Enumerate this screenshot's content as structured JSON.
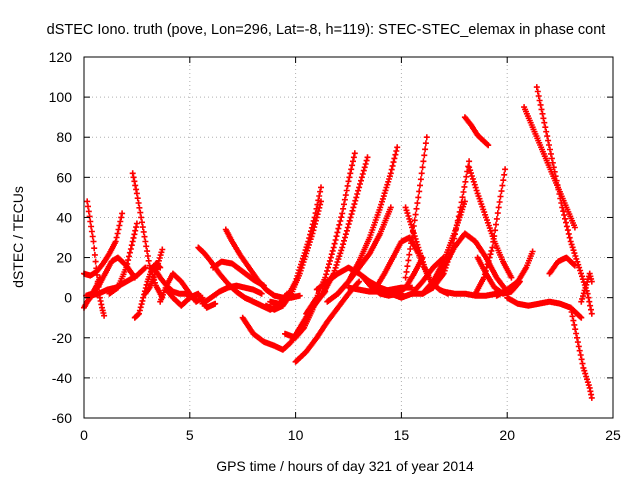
{
  "chart_data": {
    "type": "scatter",
    "title": "dSTEC Iono. truth (pove, Lon=296, Lat=-8, h=119): STEC-STEC_elemax in phase cont",
    "xlabel": "GPS time / hours of day 321 of year 2014",
    "ylabel": "dSTEC  / TECUs",
    "xlim": [
      0,
      25
    ],
    "ylim": [
      -60,
      120
    ],
    "xticks": [
      0,
      5,
      10,
      15,
      20,
      25
    ],
    "yticks": [
      -60,
      -40,
      -20,
      0,
      20,
      40,
      60,
      80,
      100,
      120
    ],
    "grid": true,
    "legend": "none",
    "marker": "plus",
    "color": "#ff0000",
    "series": [
      {
        "x": [
          0.0,
          0.15,
          0.3,
          0.45,
          0.6,
          0.75
        ],
        "y": [
          -5,
          -2,
          0,
          3,
          6,
          10
        ]
      },
      {
        "x": [
          0.15,
          0.3,
          0.45,
          0.55,
          0.65,
          0.75,
          0.85,
          0.95
        ],
        "y": [
          48,
          38,
          28,
          18,
          8,
          0,
          -5,
          -9
        ]
      },
      {
        "x": [
          0.0,
          0.3,
          0.6,
          0.9,
          1.2,
          1.5,
          1.8
        ],
        "y": [
          12,
          11,
          13,
          17,
          22,
          28,
          42
        ]
      },
      {
        "x": [
          0.1,
          0.4,
          0.7,
          1.0,
          1.3,
          1.6,
          2.0,
          2.4
        ],
        "y": [
          1,
          2,
          6,
          12,
          18,
          20,
          16,
          10
        ]
      },
      {
        "x": [
          0.3,
          0.7,
          1.1,
          1.5,
          2.0,
          2.5,
          2.9
        ],
        "y": [
          1,
          2,
          4,
          5,
          8,
          11,
          15
        ]
      },
      {
        "x": [
          1.2,
          1.6,
          2.0,
          2.3,
          2.5
        ],
        "y": [
          2,
          5,
          15,
          28,
          37
        ]
      },
      {
        "x": [
          2.3,
          2.5,
          2.7,
          2.9,
          3.1,
          3.4,
          3.7
        ],
        "y": [
          62,
          52,
          40,
          28,
          16,
          6,
          0
        ]
      },
      {
        "x": [
          2.4,
          2.6,
          2.8,
          3.0,
          3.2,
          3.4,
          3.6
        ],
        "y": [
          -10,
          -8,
          0,
          8,
          14,
          17,
          15
        ]
      },
      {
        "x": [
          2.9,
          3.1,
          3.3,
          3.5,
          3.7
        ],
        "y": [
          2,
          5,
          10,
          17,
          24
        ]
      },
      {
        "x": [
          3.3,
          3.6,
          3.9,
          4.2,
          4.5,
          4.8,
          5.2
        ],
        "y": [
          15,
          10,
          6,
          3,
          2,
          2,
          0
        ]
      },
      {
        "x": [
          3.6,
          3.9,
          4.2,
          4.6,
          5.0,
          5.3,
          5.6
        ],
        "y": [
          -2,
          6,
          12,
          8,
          2,
          -2,
          0
        ]
      },
      {
        "x": [
          3.9,
          4.2,
          4.6,
          5.0,
          5.4,
          5.8,
          6.2
        ],
        "y": [
          4,
          0,
          -4,
          0,
          2,
          -5,
          -3
        ]
      },
      {
        "x": [
          5.4,
          5.7,
          6.0,
          6.4,
          6.8,
          7.2,
          7.6,
          8.0,
          8.4,
          8.8,
          9.2,
          9.6
        ],
        "y": [
          25,
          22,
          18,
          12,
          7,
          3,
          0,
          -2,
          -4,
          -6,
          -4,
          2
        ]
      },
      {
        "x": [
          5.6,
          6.0,
          6.4,
          6.8,
          7.2,
          7.6,
          8.0,
          8.4
        ],
        "y": [
          -3,
          0,
          3,
          5,
          6,
          5,
          4,
          2
        ]
      },
      {
        "x": [
          6.1,
          6.5,
          7.0,
          7.5,
          8.0,
          8.5
        ],
        "y": [
          15,
          18,
          17,
          13,
          9,
          6
        ]
      },
      {
        "x": [
          6.7,
          7.0,
          7.4,
          7.8,
          8.2,
          8.6,
          9.0,
          9.4,
          9.8,
          10.2
        ],
        "y": [
          34,
          28,
          21,
          15,
          9,
          4,
          1,
          0,
          0,
          1
        ]
      },
      {
        "x": [
          7.5,
          8.0,
          8.5,
          9.0,
          9.4,
          9.8,
          10.2,
          10.6,
          11.0,
          11.4
        ],
        "y": [
          -10,
          -18,
          -22,
          -24,
          -26,
          -22,
          -15,
          -8,
          -2,
          3
        ]
      },
      {
        "x": [
          8.6,
          9.0,
          9.4,
          9.8,
          10.2,
          10.5,
          10.8,
          11.0,
          11.2
        ],
        "y": [
          -4,
          -6,
          -4,
          2,
          12,
          22,
          32,
          40,
          48
        ]
      },
      {
        "x": [
          8.8,
          9.2,
          9.6,
          10.0,
          10.3,
          10.6,
          10.9,
          11.2
        ],
        "y": [
          -2,
          -3,
          0,
          8,
          18,
          28,
          40,
          55
        ]
      },
      {
        "x": [
          9.5,
          10.0,
          10.4,
          10.8,
          11.0
        ],
        "y": [
          -18,
          -20,
          -15,
          -6,
          0
        ]
      },
      {
        "x": [
          10.0,
          10.5,
          11.0,
          11.5,
          12.0,
          12.5,
          13.0
        ],
        "y": [
          -32,
          -27,
          -20,
          -12,
          -5,
          2,
          8
        ]
      },
      {
        "x": [
          10.5,
          11.0,
          11.4,
          11.8,
          12.2,
          12.5,
          12.8
        ],
        "y": [
          -8,
          0,
          10,
          25,
          42,
          58,
          72
        ]
      },
      {
        "x": [
          10.8,
          11.3,
          11.8,
          12.2,
          12.6,
          13.0,
          13.4
        ],
        "y": [
          -5,
          2,
          12,
          25,
          40,
          55,
          70
        ]
      },
      {
        "x": [
          11.0,
          11.5,
          12.0,
          12.5,
          13.0,
          13.5,
          14.0,
          14.5,
          15.0
        ],
        "y": [
          4,
          8,
          12,
          15,
          12,
          8,
          5,
          3,
          2
        ]
      },
      {
        "x": [
          11.5,
          12.0,
          12.5,
          13.0,
          13.5,
          14.0,
          14.5
        ],
        "y": [
          -2,
          2,
          8,
          15,
          22,
          32,
          45
        ]
      },
      {
        "x": [
          12.0,
          12.5,
          13.0,
          13.5,
          14.0,
          14.5,
          14.8
        ],
        "y": [
          2,
          8,
          18,
          30,
          45,
          62,
          75
        ]
      },
      {
        "x": [
          12.5,
          13.0,
          13.5,
          14.0,
          14.5,
          15.0,
          15.5
        ],
        "y": [
          5,
          4,
          3,
          3,
          4,
          5,
          5
        ]
      },
      {
        "x": [
          13.2,
          13.6,
          14.0,
          14.4,
          14.8,
          15.2,
          15.6,
          16.0
        ],
        "y": [
          10,
          5,
          2,
          1,
          2,
          5,
          12,
          20
        ]
      },
      {
        "x": [
          13.8,
          14.2,
          14.6,
          15.0,
          15.4,
          15.8,
          16.2
        ],
        "y": [
          5,
          12,
          20,
          28,
          30,
          22,
          12
        ]
      },
      {
        "x": [
          14.5,
          15.0,
          15.5,
          16.0,
          16.5,
          17.0
        ],
        "y": [
          2,
          0,
          2,
          8,
          15,
          20
        ]
      },
      {
        "x": [
          15.2,
          15.5,
          15.8,
          16.1,
          16.4,
          16.8,
          17.2
        ],
        "y": [
          45,
          35,
          25,
          15,
          8,
          4,
          2
        ]
      },
      {
        "x": [
          15.2,
          15.5,
          15.8,
          16.0,
          16.2
        ],
        "y": [
          10,
          30,
          50,
          65,
          80
        ]
      },
      {
        "x": [
          15.5,
          16.0,
          16.5,
          17.0,
          17.4,
          17.8,
          18.2
        ],
        "y": [
          2,
          2,
          5,
          12,
          25,
          45,
          68
        ]
      },
      {
        "x": [
          16.0,
          16.5,
          17.0,
          17.5,
          18.0
        ],
        "y": [
          2,
          8,
          18,
          32,
          48
        ]
      },
      {
        "x": [
          16.5,
          17.0,
          17.5,
          18.0,
          18.5,
          19.0,
          19.5,
          20.0
        ],
        "y": [
          5,
          15,
          25,
          32,
          28,
          20,
          10,
          3
        ]
      },
      {
        "x": [
          17.0,
          17.5,
          18.0,
          18.5,
          19.0,
          19.5,
          20.0
        ],
        "y": [
          3,
          2,
          2,
          1,
          1,
          2,
          3
        ]
      },
      {
        "x": [
          18.0,
          18.3,
          18.6,
          18.9,
          19.1
        ],
        "y": [
          90,
          86,
          81,
          78,
          76
        ]
      },
      {
        "x": [
          18.2,
          18.6,
          19.0,
          19.4,
          19.8,
          20.2
        ],
        "y": [
          65,
          52,
          40,
          28,
          18,
          10
        ]
      },
      {
        "x": [
          18.6,
          19.0,
          19.4,
          19.8,
          20.2,
          20.6
        ],
        "y": [
          20,
          12,
          5,
          2,
          3,
          8
        ]
      },
      {
        "x": [
          18.5,
          18.9,
          19.3,
          19.6,
          19.9
        ],
        "y": [
          2,
          10,
          25,
          45,
          64
        ]
      },
      {
        "x": [
          19.5,
          20.0,
          20.5,
          20.9,
          21.2
        ],
        "y": [
          1,
          4,
          8,
          15,
          23
        ]
      },
      {
        "x": [
          20.0,
          20.5,
          21.0,
          21.5,
          22.0,
          22.5,
          23.0,
          23.5
        ],
        "y": [
          0,
          -3,
          -4,
          -3,
          -2,
          -3,
          -5,
          -10
        ]
      },
      {
        "x": [
          20.8,
          21.2,
          21.6,
          22.0,
          22.4,
          22.8,
          23.2
        ],
        "y": [
          95,
          85,
          75,
          65,
          55,
          45,
          35
        ]
      },
      {
        "x": [
          21.4,
          21.8,
          22.2,
          22.6,
          23.0,
          23.4,
          23.8,
          24.0
        ],
        "y": [
          105,
          85,
          65,
          45,
          28,
          15,
          2,
          -8
        ]
      },
      {
        "x": [
          22.0,
          22.4,
          22.8,
          23.2
        ],
        "y": [
          12,
          18,
          20,
          16
        ]
      },
      {
        "x": [
          23.0,
          23.3,
          23.6,
          23.9,
          24.0
        ],
        "y": [
          -5,
          -20,
          -35,
          -45,
          -50
        ]
      },
      {
        "x": [
          23.5,
          23.7,
          23.9,
          24.0
        ],
        "y": [
          -2,
          5,
          12,
          8
        ]
      }
    ]
  }
}
